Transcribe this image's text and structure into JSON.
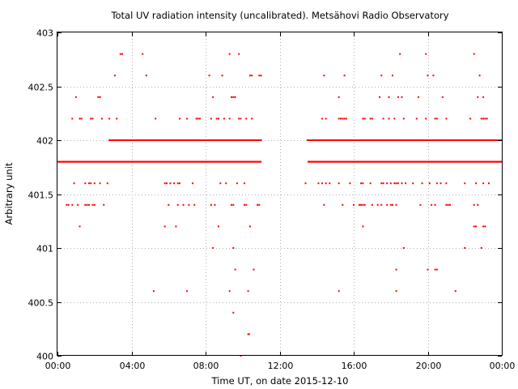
{
  "chart_data": {
    "type": "scatter",
    "title": "Total UV radiation intensity (uncalibrated). Metsähovi Radio Observatory",
    "xlabel": "Time UT, on date 2015-12-10",
    "ylabel": "Arbitrary unit",
    "xlim": [
      0,
      24
    ],
    "ylim": [
      400,
      403
    ],
    "x_ticks": [
      {
        "value": 0,
        "label": "00:00"
      },
      {
        "value": 4,
        "label": "04:00"
      },
      {
        "value": 8,
        "label": "08:00"
      },
      {
        "value": 12,
        "label": "12:00"
      },
      {
        "value": 16,
        "label": "16:00"
      },
      {
        "value": 20,
        "label": "20:00"
      },
      {
        "value": 24,
        "label": "00:00"
      }
    ],
    "y_ticks": [
      {
        "value": 400,
        "label": "400"
      },
      {
        "value": 400.5,
        "label": "400.5"
      },
      {
        "value": 401,
        "label": "401"
      },
      {
        "value": 401.5,
        "label": "401.5"
      },
      {
        "value": 402,
        "label": "402"
      },
      {
        "value": 402.5,
        "label": "402.5"
      },
      {
        "value": 403,
        "label": "403"
      }
    ],
    "grid": true,
    "marker_color": "#ff0000",
    "series": [
      {
        "name": "",
        "segments": [
          {
            "y": 401.8,
            "x_start": 0.05,
            "x_end": 11.0
          },
          {
            "y": 402.0,
            "x_start": 2.8,
            "x_end": 11.0
          },
          {
            "y": 401.8,
            "x_start": 13.55,
            "x_end": 24.0
          },
          {
            "y": 402.0,
            "x_start": 13.5,
            "x_end": 24.0
          }
        ],
        "points": [
          [
            3.4,
            402.8
          ],
          [
            3.5,
            402.8
          ],
          [
            4.6,
            402.8
          ],
          [
            9.3,
            402.8
          ],
          [
            9.8,
            402.8
          ],
          [
            18.5,
            402.8
          ],
          [
            19.9,
            402.8
          ],
          [
            22.5,
            402.8
          ],
          [
            3.1,
            402.6
          ],
          [
            4.8,
            402.6
          ],
          [
            8.2,
            402.6
          ],
          [
            8.9,
            402.6
          ],
          [
            10.4,
            402.6
          ],
          [
            10.5,
            402.6
          ],
          [
            10.9,
            402.6
          ],
          [
            11.0,
            402.6
          ],
          [
            14.4,
            402.6
          ],
          [
            15.5,
            402.6
          ],
          [
            17.5,
            402.6
          ],
          [
            18.1,
            402.6
          ],
          [
            20.0,
            402.6
          ],
          [
            20.3,
            402.6
          ],
          [
            22.8,
            402.6
          ],
          [
            1.0,
            402.4
          ],
          [
            2.2,
            402.4
          ],
          [
            2.3,
            402.4
          ],
          [
            8.4,
            402.4
          ],
          [
            9.4,
            402.4
          ],
          [
            9.5,
            402.4
          ],
          [
            9.6,
            402.4
          ],
          [
            15.2,
            402.4
          ],
          [
            17.4,
            402.4
          ],
          [
            17.9,
            402.4
          ],
          [
            18.4,
            402.4
          ],
          [
            18.6,
            402.4
          ],
          [
            19.5,
            402.4
          ],
          [
            20.8,
            402.4
          ],
          [
            22.7,
            402.4
          ],
          [
            23.0,
            402.4
          ],
          [
            0.8,
            402.2
          ],
          [
            1.2,
            402.2
          ],
          [
            1.3,
            402.2
          ],
          [
            1.8,
            402.2
          ],
          [
            1.9,
            402.2
          ],
          [
            2.4,
            402.2
          ],
          [
            2.8,
            402.2
          ],
          [
            3.2,
            402.2
          ],
          [
            5.3,
            402.2
          ],
          [
            6.6,
            402.2
          ],
          [
            7.0,
            402.2
          ],
          [
            7.5,
            402.2
          ],
          [
            7.6,
            402.2
          ],
          [
            7.7,
            402.2
          ],
          [
            8.3,
            402.2
          ],
          [
            8.6,
            402.2
          ],
          [
            8.7,
            402.2
          ],
          [
            9.0,
            402.2
          ],
          [
            9.3,
            402.2
          ],
          [
            9.8,
            402.2
          ],
          [
            9.9,
            402.2
          ],
          [
            10.2,
            402.2
          ],
          [
            10.5,
            402.2
          ],
          [
            14.3,
            402.2
          ],
          [
            14.5,
            402.2
          ],
          [
            15.2,
            402.2
          ],
          [
            15.3,
            402.2
          ],
          [
            15.4,
            402.2
          ],
          [
            15.5,
            402.2
          ],
          [
            15.6,
            402.2
          ],
          [
            16.5,
            402.2
          ],
          [
            16.6,
            402.2
          ],
          [
            16.9,
            402.2
          ],
          [
            17.0,
            402.2
          ],
          [
            17.6,
            402.2
          ],
          [
            17.9,
            402.2
          ],
          [
            18.2,
            402.2
          ],
          [
            18.7,
            402.2
          ],
          [
            19.4,
            402.2
          ],
          [
            19.9,
            402.2
          ],
          [
            20.4,
            402.2
          ],
          [
            20.5,
            402.2
          ],
          [
            21.0,
            402.2
          ],
          [
            22.3,
            402.2
          ],
          [
            22.9,
            402.2
          ],
          [
            23.0,
            402.2
          ],
          [
            23.1,
            402.2
          ],
          [
            23.2,
            402.2
          ],
          [
            0.9,
            401.6
          ],
          [
            1.5,
            401.6
          ],
          [
            1.7,
            401.6
          ],
          [
            1.8,
            401.6
          ],
          [
            2.0,
            401.6
          ],
          [
            2.3,
            401.6
          ],
          [
            2.7,
            401.6
          ],
          [
            5.8,
            401.6
          ],
          [
            5.9,
            401.6
          ],
          [
            6.1,
            401.6
          ],
          [
            6.3,
            401.6
          ],
          [
            6.5,
            401.6
          ],
          [
            6.6,
            401.6
          ],
          [
            7.3,
            401.6
          ],
          [
            8.8,
            401.6
          ],
          [
            9.1,
            401.6
          ],
          [
            9.7,
            401.6
          ],
          [
            10.1,
            401.6
          ],
          [
            13.4,
            401.6
          ],
          [
            14.1,
            401.6
          ],
          [
            14.3,
            401.6
          ],
          [
            14.5,
            401.6
          ],
          [
            14.7,
            401.6
          ],
          [
            15.2,
            401.6
          ],
          [
            15.8,
            401.6
          ],
          [
            16.4,
            401.6
          ],
          [
            16.5,
            401.6
          ],
          [
            16.9,
            401.6
          ],
          [
            17.5,
            401.6
          ],
          [
            17.6,
            401.6
          ],
          [
            17.8,
            401.6
          ],
          [
            18.0,
            401.6
          ],
          [
            18.2,
            401.6
          ],
          [
            18.3,
            401.6
          ],
          [
            18.4,
            401.6
          ],
          [
            18.6,
            401.6
          ],
          [
            18.8,
            401.6
          ],
          [
            19.2,
            401.6
          ],
          [
            19.7,
            401.6
          ],
          [
            20.1,
            401.6
          ],
          [
            20.5,
            401.6
          ],
          [
            20.7,
            401.6
          ],
          [
            21.0,
            401.6
          ],
          [
            22.0,
            401.6
          ],
          [
            22.6,
            401.6
          ],
          [
            23.0,
            401.6
          ],
          [
            23.3,
            401.6
          ],
          [
            0.5,
            401.4
          ],
          [
            0.6,
            401.4
          ],
          [
            0.8,
            401.4
          ],
          [
            1.1,
            401.4
          ],
          [
            1.5,
            401.4
          ],
          [
            1.6,
            401.4
          ],
          [
            1.7,
            401.4
          ],
          [
            1.9,
            401.4
          ],
          [
            2.0,
            401.4
          ],
          [
            2.5,
            401.4
          ],
          [
            6.0,
            401.4
          ],
          [
            6.5,
            401.4
          ],
          [
            6.8,
            401.4
          ],
          [
            7.1,
            401.4
          ],
          [
            7.4,
            401.4
          ],
          [
            8.3,
            401.4
          ],
          [
            8.5,
            401.4
          ],
          [
            9.4,
            401.4
          ],
          [
            9.5,
            401.4
          ],
          [
            10.1,
            401.4
          ],
          [
            10.2,
            401.4
          ],
          [
            10.8,
            401.4
          ],
          [
            10.9,
            401.4
          ],
          [
            14.4,
            401.4
          ],
          [
            15.4,
            401.4
          ],
          [
            16.0,
            401.4
          ],
          [
            16.3,
            401.4
          ],
          [
            16.4,
            401.4
          ],
          [
            16.5,
            401.4
          ],
          [
            16.6,
            401.4
          ],
          [
            17.0,
            401.4
          ],
          [
            17.3,
            401.4
          ],
          [
            17.5,
            401.4
          ],
          [
            17.8,
            401.4
          ],
          [
            18.0,
            401.4
          ],
          [
            18.1,
            401.4
          ],
          [
            18.3,
            401.4
          ],
          [
            19.6,
            401.4
          ],
          [
            20.2,
            401.4
          ],
          [
            20.4,
            401.4
          ],
          [
            21.0,
            401.4
          ],
          [
            21.1,
            401.4
          ],
          [
            21.2,
            401.4
          ],
          [
            22.5,
            401.4
          ],
          [
            22.7,
            401.4
          ],
          [
            1.2,
            401.2
          ],
          [
            5.8,
            401.2
          ],
          [
            6.4,
            401.2
          ],
          [
            8.7,
            401.2
          ],
          [
            10.4,
            401.2
          ],
          [
            16.5,
            401.2
          ],
          [
            22.5,
            401.2
          ],
          [
            22.6,
            401.2
          ],
          [
            23.0,
            401.2
          ],
          [
            23.1,
            401.2
          ],
          [
            8.4,
            401.0
          ],
          [
            9.5,
            401.0
          ],
          [
            18.7,
            401.0
          ],
          [
            22.0,
            401.0
          ],
          [
            22.9,
            401.0
          ],
          [
            9.6,
            400.8
          ],
          [
            10.6,
            400.8
          ],
          [
            18.3,
            400.8
          ],
          [
            20.0,
            400.8
          ],
          [
            20.4,
            400.8
          ],
          [
            20.5,
            400.8
          ],
          [
            5.2,
            400.6
          ],
          [
            7.0,
            400.6
          ],
          [
            9.3,
            400.6
          ],
          [
            10.3,
            400.6
          ],
          [
            15.2,
            400.6
          ],
          [
            18.3,
            400.6
          ],
          [
            21.5,
            400.6
          ],
          [
            9.5,
            400.4
          ],
          [
            10.3,
            400.2
          ],
          [
            10.35,
            400.2
          ],
          [
            9.9,
            400.0
          ]
        ]
      }
    ]
  }
}
